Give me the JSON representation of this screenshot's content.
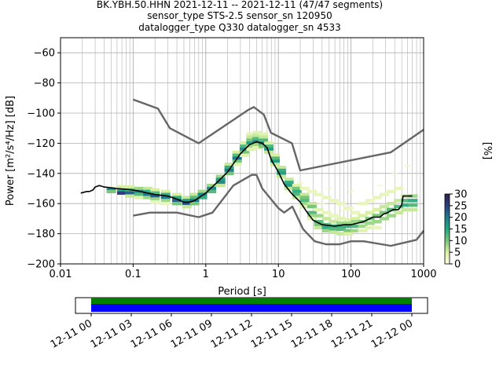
{
  "chart_data": {
    "type": "heatmap",
    "title_lines": [
      "BK.YBH.50.HHN   2021-12-11 -- 2021-12-11  (47/47 segments)",
      "sensor_type STS-2.5 sensor_sn 120950",
      "datalogger_type Q330 datalogger_sn 4533"
    ],
    "xlabel": "Period [s]",
    "ylabel": "Power [m²/s⁴/Hz] [dB]",
    "x_scale": "log",
    "xlim": [
      0.01,
      1000
    ],
    "ylim": [
      -200,
      -50
    ],
    "x_ticks": [
      {
        "value": 0.01,
        "label": "0.01"
      },
      {
        "value": 0.1,
        "label": "0.1"
      },
      {
        "value": 1,
        "label": "1"
      },
      {
        "value": 10,
        "label": "10"
      },
      {
        "value": 100,
        "label": "100"
      },
      {
        "value": 1000,
        "label": "1000"
      }
    ],
    "y_ticks": [
      {
        "value": -60,
        "label": "−60"
      },
      {
        "value": -80,
        "label": "−80"
      },
      {
        "value": -100,
        "label": "−100"
      },
      {
        "value": -120,
        "label": "−120"
      },
      {
        "value": -140,
        "label": "−140"
      },
      {
        "value": -160,
        "label": "−160"
      },
      {
        "value": -180,
        "label": "−180"
      },
      {
        "value": -200,
        "label": "−200"
      }
    ],
    "grid": true,
    "colorbar": {
      "label": "[%]",
      "min": 0,
      "max": 30,
      "ticks": [
        {
          "value": 0,
          "label": "0"
        },
        {
          "value": 5,
          "label": "5"
        },
        {
          "value": 10,
          "label": "10"
        },
        {
          "value": 15,
          "label": "15"
        },
        {
          "value": 20,
          "label": "20"
        },
        {
          "value": 25,
          "label": "25"
        },
        {
          "value": 30,
          "label": "30"
        }
      ],
      "stops": [
        "#ffffe5",
        "#d9f0a3",
        "#78c679",
        "#23a884",
        "#1f7a8c",
        "#2c3e7f",
        "#2d1e4a"
      ]
    },
    "noise_model_high": [
      [
        0.1,
        -91
      ],
      [
        0.22,
        -97
      ],
      [
        0.32,
        -110
      ],
      [
        0.8,
        -120
      ],
      [
        3.8,
        -98
      ],
      [
        4.6,
        -96
      ],
      [
        6.3,
        -101
      ],
      [
        7.9,
        -113
      ],
      [
        15.4,
        -120
      ],
      [
        20,
        -138
      ],
      [
        354,
        -126
      ],
      [
        1000,
        -111
      ]
    ],
    "noise_model_low": [
      [
        0.1,
        -168
      ],
      [
        0.17,
        -166
      ],
      [
        0.4,
        -166
      ],
      [
        0.8,
        -169
      ],
      [
        1.24,
        -166
      ],
      [
        2.4,
        -148
      ],
      [
        4.3,
        -141
      ],
      [
        5,
        -141
      ],
      [
        6,
        -150
      ],
      [
        10,
        -163
      ],
      [
        12,
        -166
      ],
      [
        15.6,
        -162
      ],
      [
        21.9,
        -177
      ],
      [
        31.6,
        -185
      ],
      [
        45,
        -187
      ],
      [
        70,
        -187
      ],
      [
        100,
        -185
      ],
      [
        150,
        -185
      ],
      [
        354,
        -188
      ],
      [
        800,
        -184
      ],
      [
        1000,
        -178
      ]
    ],
    "mean_curve": [
      [
        0.019,
        -153
      ],
      [
        0.023,
        -152
      ],
      [
        0.025,
        -152
      ],
      [
        0.028,
        -151
      ],
      [
        0.03,
        -149
      ],
      [
        0.034,
        -148
      ],
      [
        0.04,
        -149
      ],
      [
        0.06,
        -150
      ],
      [
        0.1,
        -151
      ],
      [
        0.2,
        -154
      ],
      [
        0.3,
        -155
      ],
      [
        0.4,
        -157
      ],
      [
        0.5,
        -159
      ],
      [
        0.6,
        -159
      ],
      [
        0.7,
        -158
      ],
      [
        1,
        -153
      ],
      [
        1.5,
        -145
      ],
      [
        2,
        -139
      ],
      [
        3,
        -127
      ],
      [
        4,
        -121
      ],
      [
        5,
        -119
      ],
      [
        6,
        -120
      ],
      [
        7,
        -123
      ],
      [
        8,
        -131
      ],
      [
        10,
        -139
      ],
      [
        12,
        -147
      ],
      [
        15,
        -153
      ],
      [
        20,
        -159
      ],
      [
        25,
        -166
      ],
      [
        30,
        -171
      ],
      [
        40,
        -174
      ],
      [
        60,
        -175
      ],
      [
        80,
        -174
      ],
      [
        100,
        -174
      ],
      [
        150,
        -172
      ],
      [
        200,
        -169
      ],
      [
        250,
        -169
      ],
      [
        280,
        -167
      ],
      [
        320,
        -166
      ],
      [
        380,
        -164
      ],
      [
        450,
        -164
      ],
      [
        500,
        -161
      ],
      [
        520,
        -155
      ],
      [
        700,
        -155
      ]
    ],
    "density_cells": [
      [
        0.05,
        -150,
        5
      ],
      [
        0.05,
        -151,
        20
      ],
      [
        0.05,
        -152,
        10
      ],
      [
        0.07,
        -149,
        5
      ],
      [
        0.07,
        -151,
        15
      ],
      [
        0.07,
        -153,
        25
      ],
      [
        0.09,
        -149,
        5
      ],
      [
        0.09,
        -151,
        12
      ],
      [
        0.09,
        -153,
        22
      ],
      [
        0.09,
        -155,
        6
      ],
      [
        0.12,
        -150,
        8
      ],
      [
        0.12,
        -152,
        18
      ],
      [
        0.12,
        -154,
        12
      ],
      [
        0.12,
        -156,
        4
      ],
      [
        0.16,
        -150,
        6
      ],
      [
        0.16,
        -152,
        14
      ],
      [
        0.16,
        -154,
        20
      ],
      [
        0.16,
        -156,
        8
      ],
      [
        0.2,
        -151,
        5
      ],
      [
        0.2,
        -153,
        12
      ],
      [
        0.2,
        -155,
        22
      ],
      [
        0.2,
        -157,
        8
      ],
      [
        0.2,
        -159,
        3
      ],
      [
        0.28,
        -152,
        5
      ],
      [
        0.28,
        -154,
        14
      ],
      [
        0.28,
        -156,
        20
      ],
      [
        0.28,
        -158,
        8
      ],
      [
        0.28,
        -160,
        3
      ],
      [
        0.4,
        -154,
        5
      ],
      [
        0.4,
        -156,
        14
      ],
      [
        0.4,
        -158,
        22
      ],
      [
        0.4,
        -160,
        10
      ],
      [
        0.55,
        -156,
        6
      ],
      [
        0.55,
        -158,
        16
      ],
      [
        0.55,
        -160,
        24
      ],
      [
        0.55,
        -162,
        6
      ],
      [
        0.7,
        -154,
        6
      ],
      [
        0.7,
        -156,
        12
      ],
      [
        0.7,
        -158,
        20
      ],
      [
        0.7,
        -160,
        10
      ],
      [
        0.9,
        -152,
        8
      ],
      [
        0.9,
        -154,
        18
      ],
      [
        0.9,
        -156,
        14
      ],
      [
        1.2,
        -148,
        8
      ],
      [
        1.2,
        -150,
        18
      ],
      [
        1.2,
        -152,
        12
      ],
      [
        1.6,
        -142,
        8
      ],
      [
        1.6,
        -144,
        16
      ],
      [
        1.6,
        -146,
        18
      ],
      [
        1.6,
        -148,
        6
      ],
      [
        2.1,
        -134,
        6
      ],
      [
        2.1,
        -136,
        14
      ],
      [
        2.1,
        -138,
        20
      ],
      [
        2.1,
        -140,
        10
      ],
      [
        2.7,
        -126,
        5
      ],
      [
        2.7,
        -128,
        12
      ],
      [
        2.7,
        -130,
        20
      ],
      [
        2.7,
        -132,
        10
      ],
      [
        2.7,
        -134,
        4
      ],
      [
        3.4,
        -120,
        5
      ],
      [
        3.4,
        -122,
        12
      ],
      [
        3.4,
        -124,
        18
      ],
      [
        3.4,
        -126,
        10
      ],
      [
        3.4,
        -128,
        4
      ],
      [
        4.2,
        -114,
        4
      ],
      [
        4.2,
        -116,
        6
      ],
      [
        4.2,
        -118,
        10
      ],
      [
        4.2,
        -120,
        16
      ],
      [
        4.2,
        -122,
        8
      ],
      [
        4.2,
        -124,
        4
      ],
      [
        5.1,
        -113,
        4
      ],
      [
        5.1,
        -115,
        6
      ],
      [
        5.1,
        -117,
        12
      ],
      [
        5.1,
        -119,
        18
      ],
      [
        5.1,
        -121,
        8
      ],
      [
        5.1,
        -123,
        4
      ],
      [
        6.2,
        -114,
        4
      ],
      [
        6.2,
        -116,
        6
      ],
      [
        6.2,
        -118,
        12
      ],
      [
        6.2,
        -120,
        18
      ],
      [
        6.2,
        -122,
        10
      ],
      [
        7.4,
        -120,
        5
      ],
      [
        7.4,
        -122,
        12
      ],
      [
        7.4,
        -124,
        16
      ],
      [
        7.4,
        -126,
        6
      ],
      [
        9,
        -128,
        5
      ],
      [
        9,
        -130,
        12
      ],
      [
        9,
        -132,
        16
      ],
      [
        9,
        -134,
        6
      ],
      [
        11,
        -136,
        6
      ],
      [
        11,
        -138,
        14
      ],
      [
        11,
        -140,
        16
      ],
      [
        11,
        -142,
        6
      ],
      [
        14,
        -144,
        6
      ],
      [
        14,
        -146,
        14
      ],
      [
        14,
        -148,
        16
      ],
      [
        14,
        -150,
        6
      ],
      [
        18,
        -148,
        4
      ],
      [
        18,
        -150,
        10
      ],
      [
        18,
        -152,
        14
      ],
      [
        18,
        -154,
        12
      ],
      [
        18,
        -156,
        6
      ],
      [
        23,
        -150,
        3
      ],
      [
        23,
        -154,
        6
      ],
      [
        23,
        -156,
        10
      ],
      [
        23,
        -158,
        12
      ],
      [
        23,
        -160,
        8
      ],
      [
        23,
        -162,
        4
      ],
      [
        29,
        -152,
        3
      ],
      [
        29,
        -160,
        6
      ],
      [
        29,
        -162,
        10
      ],
      [
        29,
        -166,
        12
      ],
      [
        29,
        -168,
        8
      ],
      [
        29,
        -170,
        4
      ],
      [
        36,
        -154,
        3
      ],
      [
        36,
        -164,
        4
      ],
      [
        36,
        -168,
        8
      ],
      [
        36,
        -172,
        12
      ],
      [
        36,
        -174,
        10
      ],
      [
        36,
        -176,
        6
      ],
      [
        46,
        -156,
        3
      ],
      [
        46,
        -166,
        3
      ],
      [
        46,
        -170,
        6
      ],
      [
        46,
        -174,
        12
      ],
      [
        46,
        -176,
        14
      ],
      [
        46,
        -178,
        8
      ],
      [
        58,
        -158,
        3
      ],
      [
        58,
        -168,
        3
      ],
      [
        58,
        -172,
        6
      ],
      [
        58,
        -175,
        14
      ],
      [
        58,
        -177,
        12
      ],
      [
        58,
        -179,
        6
      ],
      [
        73,
        -160,
        3
      ],
      [
        73,
        -170,
        4
      ],
      [
        73,
        -173,
        8
      ],
      [
        73,
        -175,
        14
      ],
      [
        73,
        -177,
        12
      ],
      [
        73,
        -180,
        6
      ],
      [
        92,
        -163,
        3
      ],
      [
        92,
        -171,
        4
      ],
      [
        92,
        -173,
        8
      ],
      [
        92,
        -175,
        14
      ],
      [
        92,
        -178,
        10
      ],
      [
        92,
        -180,
        5
      ],
      [
        115,
        -166,
        3
      ],
      [
        115,
        -170,
        5
      ],
      [
        115,
        -172,
        8
      ],
      [
        115,
        -175,
        12
      ],
      [
        115,
        -178,
        8
      ],
      [
        145,
        -160,
        3
      ],
      [
        145,
        -168,
        5
      ],
      [
        145,
        -172,
        10
      ],
      [
        145,
        -175,
        8
      ],
      [
        145,
        -178,
        4
      ],
      [
        182,
        -158,
        3
      ],
      [
        182,
        -166,
        5
      ],
      [
        182,
        -170,
        10
      ],
      [
        182,
        -173,
        8
      ],
      [
        182,
        -176,
        4
      ],
      [
        228,
        -156,
        3
      ],
      [
        228,
        -164,
        5
      ],
      [
        228,
        -168,
        10
      ],
      [
        228,
        -172,
        8
      ],
      [
        228,
        -176,
        3
      ],
      [
        287,
        -154,
        3
      ],
      [
        287,
        -162,
        6
      ],
      [
        287,
        -166,
        10
      ],
      [
        287,
        -170,
        8
      ],
      [
        360,
        -152,
        3
      ],
      [
        360,
        -160,
        6
      ],
      [
        360,
        -164,
        12
      ],
      [
        360,
        -168,
        8
      ],
      [
        452,
        -150,
        3
      ],
      [
        452,
        -158,
        6
      ],
      [
        452,
        -162,
        12
      ],
      [
        452,
        -166,
        6
      ],
      [
        567,
        -155,
        6
      ],
      [
        567,
        -158,
        12
      ],
      [
        567,
        -161,
        14
      ],
      [
        567,
        -164,
        6
      ],
      [
        712,
        -155,
        8
      ],
      [
        712,
        -158,
        14
      ],
      [
        712,
        -161,
        12
      ],
      [
        712,
        -164,
        6
      ]
    ],
    "density_faint_trails": [
      [
        [
          14,
          -152
        ],
        [
          40,
          -160
        ],
        [
          80,
          -165
        ],
        [
          200,
          -158
        ],
        [
          400,
          -140
        ]
      ],
      [
        [
          20,
          -146
        ],
        [
          50,
          -150
        ],
        [
          100,
          -152
        ],
        [
          250,
          -148
        ],
        [
          600,
          -135
        ]
      ]
    ]
  },
  "timeline": {
    "ticks": [
      {
        "label": "12-11 00",
        "frac": 0
      },
      {
        "label": "12-11 03",
        "frac": 0.125
      },
      {
        "label": "12-11 06",
        "frac": 0.25
      },
      {
        "label": "12-11 09",
        "frac": 0.375
      },
      {
        "label": "12-11 12",
        "frac": 0.5
      },
      {
        "label": "12-11 15",
        "frac": 0.625
      },
      {
        "label": "12-11 18",
        "frac": 0.75
      },
      {
        "label": "12-11 21",
        "frac": 0.875
      },
      {
        "label": "12-12 00",
        "frac": 1
      }
    ],
    "data_color": "#008000",
    "psd_color": "#0000ff"
  },
  "colors": {
    "noise_model": "#666666",
    "mean": "#000000",
    "grid": "#b0b0b0"
  }
}
